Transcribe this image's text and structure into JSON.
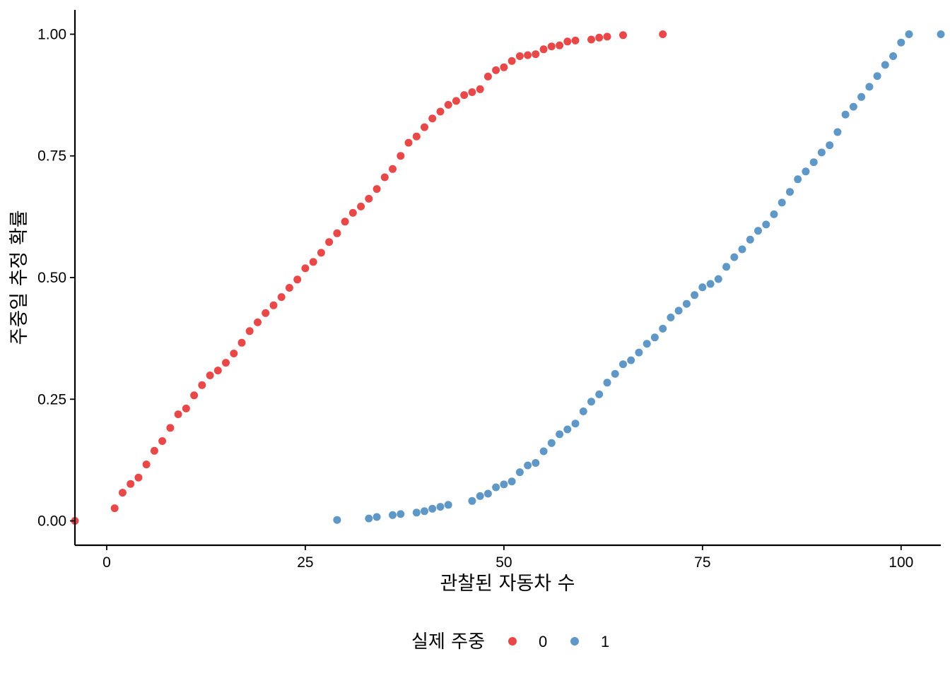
{
  "chart_data": {
    "type": "scatter",
    "xlabel": "관찰된 자동차 수",
    "ylabel": "주중일 추정 확률",
    "xlim": [
      -4,
      105
    ],
    "ylim": [
      -0.05,
      1.05
    ],
    "x_ticks": [
      0,
      25,
      50,
      75,
      100
    ],
    "x_tick_labels": [
      "0",
      "25",
      "50",
      "75",
      "100"
    ],
    "y_ticks": [
      0,
      0.25,
      0.5,
      0.75,
      1.0
    ],
    "y_tick_labels": [
      "0.00",
      "0.25",
      "0.50",
      "0.75",
      "1.00"
    ],
    "grid": false,
    "legend": {
      "title": "실제 주중",
      "position": "bottom"
    },
    "series": [
      {
        "name": "0",
        "color": "#e41a1c",
        "points": [
          [
            -4,
            0.0
          ],
          [
            1,
            0.026
          ],
          [
            2,
            0.058
          ],
          [
            3,
            0.076
          ],
          [
            4,
            0.089
          ],
          [
            5,
            0.116
          ],
          [
            6,
            0.144
          ],
          [
            7,
            0.164
          ],
          [
            8,
            0.191
          ],
          [
            9,
            0.219
          ],
          [
            10,
            0.231
          ],
          [
            11,
            0.258
          ],
          [
            12,
            0.279
          ],
          [
            13,
            0.299
          ],
          [
            14,
            0.309
          ],
          [
            15,
            0.325
          ],
          [
            16,
            0.344
          ],
          [
            17,
            0.366
          ],
          [
            18,
            0.39
          ],
          [
            19,
            0.408
          ],
          [
            20,
            0.427
          ],
          [
            21,
            0.443
          ],
          [
            22,
            0.46
          ],
          [
            23,
            0.479
          ],
          [
            24,
            0.496
          ],
          [
            25,
            0.519
          ],
          [
            26,
            0.532
          ],
          [
            27,
            0.551
          ],
          [
            28,
            0.573
          ],
          [
            29,
            0.591
          ],
          [
            30,
            0.615
          ],
          [
            31,
            0.633
          ],
          [
            32,
            0.646
          ],
          [
            33,
            0.662
          ],
          [
            34,
            0.682
          ],
          [
            35,
            0.706
          ],
          [
            36,
            0.723
          ],
          [
            37,
            0.75
          ],
          [
            38,
            0.777
          ],
          [
            39,
            0.79
          ],
          [
            40,
            0.809
          ],
          [
            41,
            0.827
          ],
          [
            42,
            0.841
          ],
          [
            43,
            0.855
          ],
          [
            44,
            0.863
          ],
          [
            45,
            0.875
          ],
          [
            46,
            0.881
          ],
          [
            47,
            0.887
          ],
          [
            48,
            0.913
          ],
          [
            49,
            0.926
          ],
          [
            50,
            0.932
          ],
          [
            51,
            0.945
          ],
          [
            52,
            0.955
          ],
          [
            53,
            0.957
          ],
          [
            54,
            0.959
          ],
          [
            55,
            0.969
          ],
          [
            56,
            0.975
          ],
          [
            57,
            0.977
          ],
          [
            58,
            0.985
          ],
          [
            59,
            0.987
          ],
          [
            61,
            0.989
          ],
          [
            62,
            0.993
          ],
          [
            63,
            0.995
          ],
          [
            65,
            0.998
          ],
          [
            70,
            1.0
          ]
        ]
      },
      {
        "name": "1",
        "color": "#377eb8",
        "points": [
          [
            29,
            0.002
          ],
          [
            33,
            0.005
          ],
          [
            34,
            0.008
          ],
          [
            36,
            0.012
          ],
          [
            37,
            0.014
          ],
          [
            39,
            0.017
          ],
          [
            40,
            0.02
          ],
          [
            41,
            0.025
          ],
          [
            42,
            0.029
          ],
          [
            43,
            0.033
          ],
          [
            46,
            0.041
          ],
          [
            47,
            0.051
          ],
          [
            48,
            0.056
          ],
          [
            49,
            0.069
          ],
          [
            50,
            0.075
          ],
          [
            51,
            0.081
          ],
          [
            52,
            0.1
          ],
          [
            53,
            0.114
          ],
          [
            54,
            0.119
          ],
          [
            55,
            0.143
          ],
          [
            56,
            0.16
          ],
          [
            57,
            0.178
          ],
          [
            58,
            0.188
          ],
          [
            59,
            0.2
          ],
          [
            60,
            0.225
          ],
          [
            61,
            0.245
          ],
          [
            62,
            0.26
          ],
          [
            63,
            0.284
          ],
          [
            64,
            0.302
          ],
          [
            65,
            0.322
          ],
          [
            66,
            0.33
          ],
          [
            67,
            0.346
          ],
          [
            68,
            0.364
          ],
          [
            69,
            0.377
          ],
          [
            70,
            0.395
          ],
          [
            71,
            0.418
          ],
          [
            72,
            0.432
          ],
          [
            73,
            0.446
          ],
          [
            74,
            0.464
          ],
          [
            75,
            0.48
          ],
          [
            76,
            0.487
          ],
          [
            77,
            0.497
          ],
          [
            78,
            0.522
          ],
          [
            79,
            0.542
          ],
          [
            80,
            0.558
          ],
          [
            81,
            0.578
          ],
          [
            82,
            0.596
          ],
          [
            83,
            0.609
          ],
          [
            84,
            0.63
          ],
          [
            85,
            0.654
          ],
          [
            86,
            0.676
          ],
          [
            87,
            0.702
          ],
          [
            88,
            0.718
          ],
          [
            89,
            0.737
          ],
          [
            90,
            0.757
          ],
          [
            91,
            0.772
          ],
          [
            92,
            0.799
          ],
          [
            93,
            0.835
          ],
          [
            94,
            0.851
          ],
          [
            95,
            0.871
          ],
          [
            96,
            0.892
          ],
          [
            97,
            0.914
          ],
          [
            98,
            0.937
          ],
          [
            99,
            0.955
          ],
          [
            100,
            0.983
          ],
          [
            101,
            1.0
          ],
          [
            105,
            1.0
          ]
        ]
      }
    ]
  }
}
